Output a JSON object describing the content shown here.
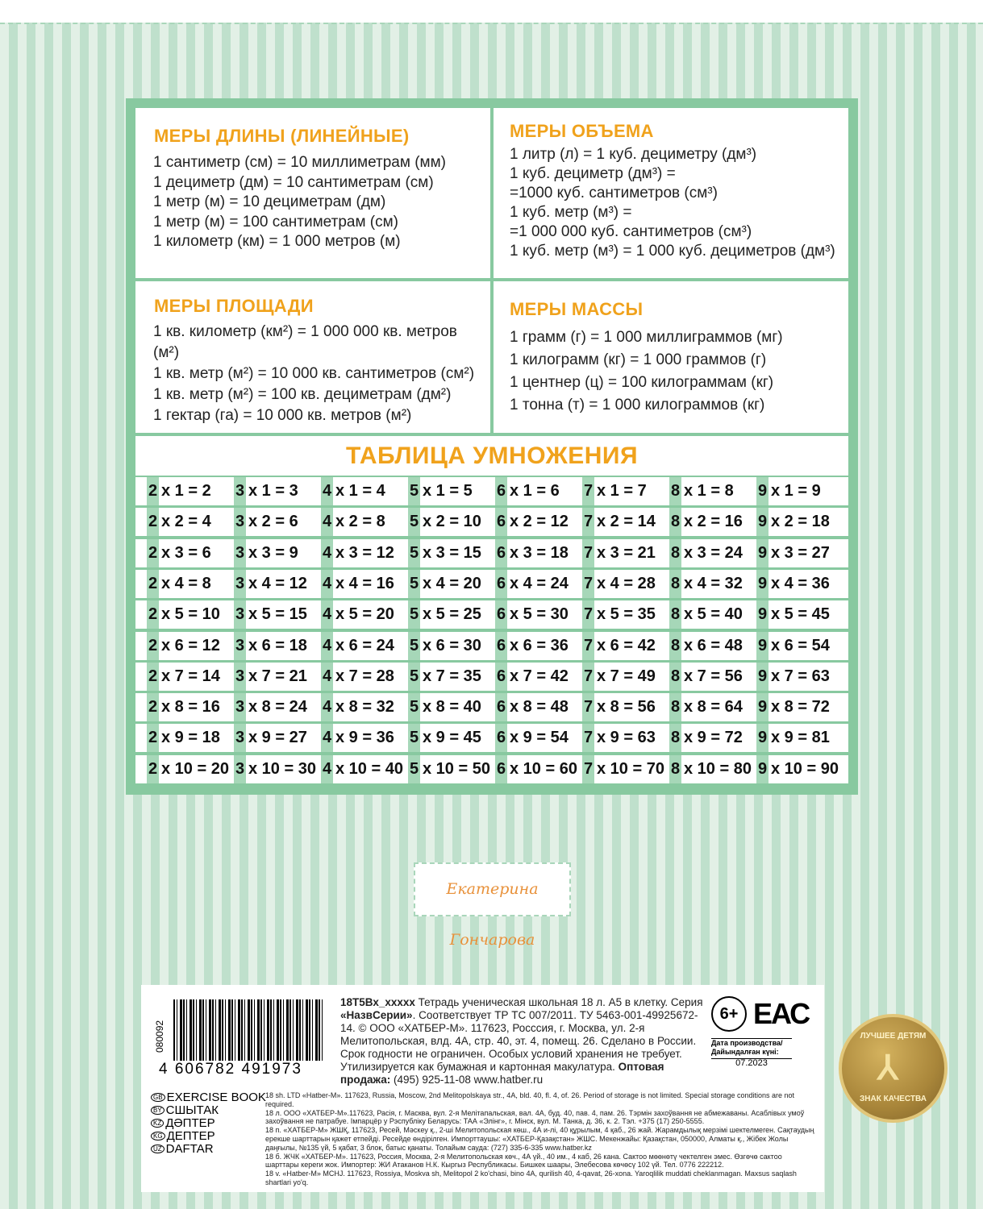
{
  "colors": {
    "accent": "#f0a21c",
    "frame": "#88c9a0",
    "stripe_light": "#e2f0e6",
    "stripe_dark": "#bfe0cc",
    "digit_bg": "#a6d7b8"
  },
  "panels": [
    {
      "title": "МЕРЫ ДЛИНЫ (ЛИНЕЙНЫЕ)",
      "lines": [
        "1 сантиметр (см) = 10 миллиметрам (мм)",
        "1 дециметр (дм) = 10 сантиметрам (см)",
        "1 метр (м) = 10 дециметрам (дм)",
        "1 метр (м) = 100 сантиметрам (см)",
        "1 километр (км) = 1 000 метров (м)"
      ]
    },
    {
      "title": "МЕРЫ ОБЪЕМА",
      "lines": [
        "1 литр (л) = 1 куб. дециметру (дм³)",
        "1 куб. дециметр (дм³) =",
        "=1000 куб. сантиметров (см³)",
        "1 куб. метр (м³) =",
        "=1 000 000 куб. сантиметров (см³)",
        "1 куб. метр (м³) = 1 000 куб. дециметров (дм³)"
      ]
    },
    {
      "title": "МЕРЫ ПЛОЩАДИ",
      "lines": [
        "1 кв. километр (км²) = 1 000 000 кв. метров (м²)",
        "1 кв. метр (м²) = 10 000 кв. сантиметров (см²)",
        "1 кв. метр (м²) = 100 кв. дециметрам (дм²)",
        "1 гектар (га) = 10 000 кв. метров (м²)"
      ]
    },
    {
      "title": "МЕРЫ МАССЫ",
      "lines": [
        "1 грамм (г) = 1 000 миллиграммов (мг)",
        "1 килограмм (кг) = 1 000 граммов (г)",
        "1 центнер (ц) = 100 килограммам (кг)",
        "1 тонна (т) = 1 000 килограммов (кг)"
      ]
    }
  ],
  "table": {
    "title": "ТАБЛИЦА УМНОЖЕНИЯ",
    "columns": [
      {
        "digit": "2",
        "cells": [
          "x 1 = 2",
          "x 2 = 4",
          "x 3 = 6",
          "x 4 = 8",
          "x 5 = 10",
          "x 6 = 12",
          "x 7 = 14",
          "x 8 = 16",
          "x 9 = 18",
          "x 10 = 20"
        ]
      },
      {
        "digit": "3",
        "cells": [
          "x 1 = 3",
          "x 2 = 6",
          "x 3 = 9",
          "x 4 = 12",
          "x 5 = 15",
          "x 6 = 18",
          "x 7 = 21",
          "x 8 = 24",
          "x 9 = 27",
          "x 10 = 30"
        ]
      },
      {
        "digit": "4",
        "cells": [
          "x 1 = 4",
          "x 2 = 8",
          "x 3 = 12",
          "x 4 = 16",
          "x 5 = 20",
          "x 6 = 24",
          "x 7 = 28",
          "x 8 = 32",
          "x 9 = 36",
          "x 10 = 40"
        ]
      },
      {
        "digit": "5",
        "cells": [
          "x 1 = 5",
          "x 2 = 10",
          "x 3 = 15",
          "x 4 = 20",
          "x 5 = 25",
          "x 6 = 30",
          "x 7 = 35",
          "x 8 = 40",
          "x 9 = 45",
          "x 10 = 50"
        ]
      },
      {
        "digit": "6",
        "cells": [
          "x 1 = 6",
          "x 2 = 12",
          "x 3 = 18",
          "x 4 = 24",
          "x 5 = 30",
          "x 6 = 36",
          "x 7 = 42",
          "x 8 = 48",
          "x 9 = 54",
          "x 10 = 60"
        ]
      },
      {
        "digit": "7",
        "cells": [
          "x 1 = 7",
          "x 2 = 14",
          "x 3 = 21",
          "x 4 = 28",
          "x 5 = 35",
          "x 6 = 42",
          "x 7 = 49",
          "x 8 = 56",
          "x 9 = 63",
          "x 10 = 70"
        ]
      },
      {
        "digit": "8",
        "cells": [
          "x 1 = 8",
          "x 2 = 16",
          "x 3 = 24",
          "x 4 = 32",
          "x 5 = 40",
          "x 6 = 48",
          "x 7 = 56",
          "x 8 = 64",
          "x 9 = 72",
          "x 10 = 80"
        ]
      },
      {
        "digit": "9",
        "cells": [
          "x 1 = 9",
          "x 2 = 18",
          "x 3 = 27",
          "x 4 = 36",
          "x 5 = 45",
          "x 6 = 54",
          "x 7 = 63",
          "x 8 = 72",
          "x 9 = 81",
          "x 10 = 90"
        ]
      }
    ]
  },
  "signature": "Екатерина Гончарова",
  "info": {
    "barcode_number": "4 606782 491973",
    "vertical_number": "080092",
    "code": "18Т5Вх_xxxxx",
    "description_1": " Тетрадь ученическая школьная 18 л. А5 в клетку. Серия ",
    "series": "«НазвСерии»",
    "description_2": ". Соответствует ТР ТС 007/2011. ТУ 5463-001-49925672-14. © ООО «ХАТБЕР-М». 117623, Росссия, г. Москва, ул. 2-я Мелитопольская, влд. 4А, стр. 40, эт. 4, помещ. 26. Сделано в России. Срок годности не ограничен. Особых условий хранения не требует. Утилизируется как бумажная и картонная макулатура. ",
    "wholesale_label": "Оптовая продажа:",
    "wholesale_contact": " (495) 925-11-08 www.hatber.ru",
    "age": "6+",
    "eac": "ЕАС",
    "date_label": "Дата производства/ Дайындалған күні:",
    "date_value": "07.2023",
    "langs": [
      {
        "code": "GB",
        "name": "EXERCISE BOOK"
      },
      {
        "code": "BY",
        "name": "СШЫТАК"
      },
      {
        "code": "KZ",
        "name": "ДӘПТЕР"
      },
      {
        "code": "KG",
        "name": "ДЕПТЕР"
      },
      {
        "code": "UZ",
        "name": "DAFTAR"
      }
    ],
    "fine_print": [
      "18 sh. LTD «Hatber-M». 117623, Russia, Moscow, 2nd Melitopolskaya str., 4A, bld. 40, fl. 4, of. 26. Period of storage is not limited. Special storage conditions are not required.",
      "18 л. ООО «ХАТБЕР-М».117623, Расія, г. Масква, вул. 2-я Мелітапальская, вал. 4А, буд. 40, пав. 4, пам. 26. Тэрмін захоўвання не абмежаваны. Асаблівых умоў захоўвання не патрабуе. Імпарцёр у Рэспубліку Беларусь: ТАА «Элінг», г. Мінск, вул. М. Танка, д. 36, к. 2. Тэл. +375 (17) 250-5555.",
      "18 п. «ХАТБЕР-М» ЖШҚ, 117623, Ресей, Мәскеу қ., 2-ші Мелитопольская көш., 4А и-лі, 40 құрылым, 4 қаб., 26 жай. Жарамдылық мерзімі шектелмеген. Сақтаудың ерекше шарттарын қажет етпейді. Ресейде өндірілген. Импорттаушы: «ХАТБЕР-Қазақстан» ЖШС. Мекенжайы: Қазақстан, 050000, Алматы қ., Жібек Жолы даңғылы, №135 үй, 5 қабат, 3 блок, батыс қанаты. Толайым сауда: (727) 335-6-335 www.hatber.kz",
      "18 б. ЖЧК «ХАТБЕР-М». 117623, Россия, Москва, 2-я Мелитопольская көч., 4А үй., 40 им., 4 каб, 26 кана. Сактоо мөөнөтү чектелген эмес. Өзгөчө сактоо шарттары кереги жок. Импортер: ЖИ Атаканов Н.К. Кыргыз Республикасы. Бишкек шаары, Элебесова көчөсү 102 үй. Тел. 0776 222212.",
      "18 v. «Hatber-M» MCHJ. 117623, Rossiya, Moskva sh, Melitopol 2 ko'chasi, bino 4A, qurilish 40, 4-qavat, 26-xona. Yaroqlilik muddati cheklanmagan. Maxsus saqlash shartlari yo'q."
    ]
  },
  "medal": {
    "top": "ЛУЧШЕЕ ДЕТЯМ",
    "bottom": "ЗНАК КАЧЕСТВА"
  }
}
